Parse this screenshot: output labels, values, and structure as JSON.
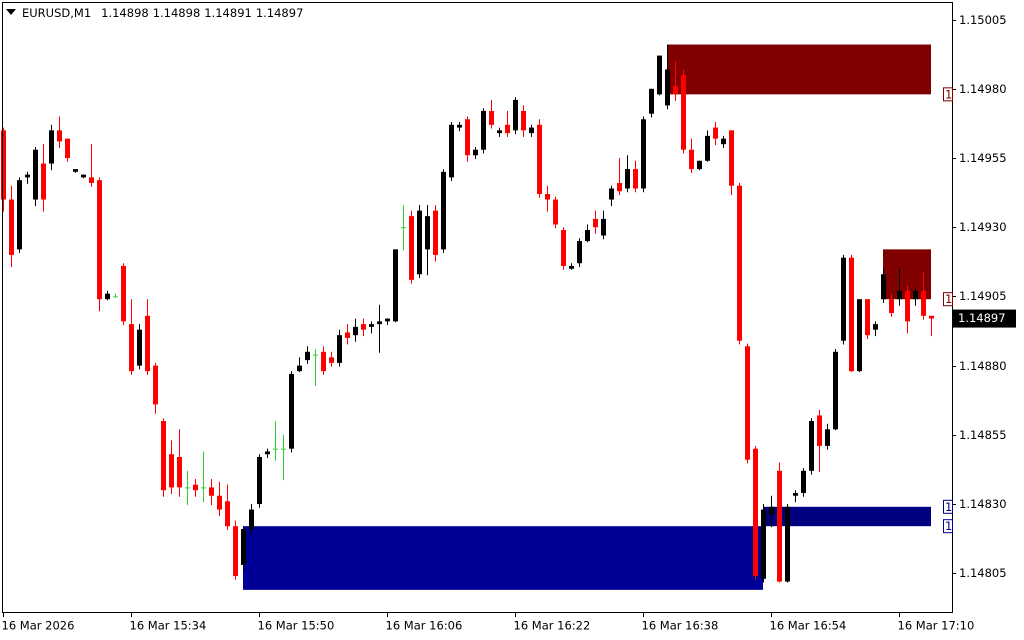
{
  "chart_data": {
    "type": "candlestick",
    "title": "EURUSD,M1",
    "categories": [
      "16 Mar 2026",
      null,
      null,
      null,
      null,
      null,
      null,
      null,
      null,
      null,
      null,
      null,
      null,
      null,
      null,
      null,
      "16 Mar 15:34",
      null,
      null,
      null,
      null,
      null,
      null,
      null,
      null,
      null,
      null,
      null,
      null,
      null,
      null,
      null,
      "16 Mar 15:50",
      null,
      null,
      null,
      null,
      null,
      null,
      null,
      null,
      null,
      null,
      null,
      null,
      null,
      null,
      null,
      "16 Mar 16:06",
      null,
      null,
      null,
      null,
      null,
      null,
      null,
      null,
      null,
      null,
      null,
      null,
      null,
      null,
      null,
      "16 Mar 16:22",
      null,
      null,
      null,
      null,
      null,
      null,
      null,
      null,
      null,
      null,
      null,
      null,
      null,
      null,
      null,
      "16 Mar 16:38",
      null,
      null,
      null,
      null,
      null,
      null,
      null,
      null,
      null,
      null,
      null,
      null,
      null,
      null,
      null,
      "16 Mar 16:54",
      null,
      null,
      null,
      null,
      null,
      null,
      null,
      null,
      null,
      null,
      null,
      null,
      null,
      null,
      null,
      "16 Mar 17:10",
      null,
      null,
      null,
      null
    ],
    "open": [
      1.14965,
      1.1494,
      1.14922,
      1.14948,
      1.1494,
      1.14953,
      1.14953,
      1.14965,
      1.14962,
      1.1495,
      1.14948,
      1.14948,
      1.14947,
      1.14904,
      1.14905,
      1.14916,
      1.14895,
      1.1488,
      1.14898,
      1.1488,
      1.1486,
      1.14848,
      1.14847,
      1.14836,
      1.14837,
      1.14836,
      1.14836,
      1.14833,
      1.14831,
      1.14822,
      1.14808,
      1.14821,
      1.1483,
      1.14848,
      1.1485,
      1.1485,
      1.1485,
      1.14878,
      1.14882,
      1.14884,
      1.14885,
      1.14883,
      1.14881,
      1.14892,
      1.14891,
      1.14895,
      1.14894,
      1.14895,
      1.14896,
      1.14896,
      1.1493,
      1.14934,
      1.14913,
      1.14922,
      1.14936,
      1.14922,
      1.14948,
      1.14966,
      1.14969,
      1.14956,
      1.14958,
      1.14972,
      1.14964,
      1.14967,
      1.14965,
      1.14972,
      1.14964,
      1.14967,
      1.14942,
      1.1494,
      1.14929,
      1.14915,
      1.14917,
      1.14925,
      1.14933,
      1.14927,
      1.1494,
      1.14946,
      1.14944,
      1.14951,
      1.14944,
      1.14971,
      1.14978,
      1.14974,
      1.14981,
      1.14985,
      1.14958,
      1.14951,
      1.14954,
      1.14966,
      1.1496,
      1.14965,
      1.14945,
      1.14887,
      1.1485,
      1.14803,
      1.14826,
      1.14842,
      1.14802,
      1.14833,
      1.14834,
      1.14842,
      1.14862,
      1.14851,
      1.14857,
      1.14889,
      1.14919,
      1.14878,
      1.14904,
      1.14893,
      1.14904,
      1.14904,
      1.14904,
      1.14907,
      1.14904,
      1.14907,
      1.14898
    ],
    "high": [
      1.14966,
      1.14945,
      1.14948,
      1.1495,
      1.14959,
      1.1496,
      1.14967,
      1.1497,
      1.14962,
      1.14951,
      1.14949,
      1.1496,
      1.14948,
      1.14907,
      1.14906,
      1.14917,
      1.14904,
      1.14895,
      1.14904,
      1.14881,
      1.14861,
      1.14853,
      1.14857,
      1.14842,
      1.14839,
      1.14849,
      1.14839,
      1.14838,
      1.14837,
      1.14824,
      1.14822,
      1.1483,
      1.14848,
      1.1485,
      1.1486,
      1.14855,
      1.14878,
      1.14883,
      1.14887,
      1.14886,
      1.14887,
      1.14885,
      1.14893,
      1.14895,
      1.14897,
      1.14897,
      1.14896,
      1.14902,
      1.14897,
      1.14922,
      1.14938,
      1.14936,
      1.14938,
      1.14938,
      1.14938,
      1.14951,
      1.14968,
      1.14968,
      1.1497,
      1.14959,
      1.14973,
      1.14976,
      1.14966,
      1.14972,
      1.14977,
      1.14974,
      1.14967,
      1.14969,
      1.14945,
      1.14941,
      1.1493,
      1.14917,
      1.14926,
      1.14931,
      1.14936,
      1.14936,
      1.14945,
      1.14955,
      1.14956,
      1.14954,
      1.1497,
      1.1498,
      1.14992,
      1.14996,
      1.1499,
      1.14987,
      1.14962,
      1.14954,
      1.14965,
      1.14968,
      1.14963,
      1.14965,
      1.14946,
      1.14888,
      1.14851,
      1.1483,
      1.14833,
      1.14845,
      1.1483,
      1.14835,
      1.14843,
      1.14861,
      1.14864,
      1.14859,
      1.14886,
      1.1492,
      1.1492,
      1.14904,
      1.14904,
      1.14896,
      1.14915,
      1.14906,
      1.14915,
      1.14909,
      1.14908,
      1.14914,
      1.14898
    ],
    "low": [
      1.14936,
      1.14916,
      1.14921,
      1.14946,
      1.14938,
      1.14936,
      1.14951,
      1.14959,
      1.14954,
      1.1495,
      1.14948,
      1.14945,
      1.149,
      1.14904,
      1.14905,
      1.14895,
      1.14877,
      1.14879,
      1.14877,
      1.14863,
      1.14833,
      1.14834,
      1.14833,
      1.1483,
      1.14833,
      1.14831,
      1.1483,
      1.14826,
      1.14821,
      1.14803,
      1.14806,
      1.14819,
      1.14829,
      1.14847,
      1.14846,
      1.14839,
      1.14849,
      1.14878,
      1.14881,
      1.14873,
      1.14877,
      1.1488,
      1.1488,
      1.14888,
      1.14889,
      1.14891,
      1.14892,
      1.14885,
      1.14895,
      1.14896,
      1.14922,
      1.1491,
      1.14912,
      1.14913,
      1.14918,
      1.14921,
      1.14947,
      1.14965,
      1.14954,
      1.14955,
      1.14957,
      1.14966,
      1.14963,
      1.14963,
      1.14964,
      1.14963,
      1.14963,
      1.14941,
      1.14936,
      1.1493,
      1.14915,
      1.14915,
      1.14916,
      1.14925,
      1.14928,
      1.14926,
      1.14938,
      1.14942,
      1.14943,
      1.14943,
      1.14943,
      1.1497,
      1.14978,
      1.14973,
      1.14976,
      1.14957,
      1.1495,
      1.14951,
      1.14954,
      1.1496,
      1.14959,
      1.14942,
      1.14888,
      1.14845,
      1.14803,
      1.14802,
      1.14822,
      1.14802,
      1.14802,
      1.14831,
      1.14833,
      1.14841,
      1.14842,
      1.1485,
      1.14857,
      1.14888,
      1.14878,
      1.14878,
      1.1489,
      1.14891,
      1.14903,
      1.14898,
      1.14902,
      1.14892,
      1.14902,
      1.14897,
      1.14891
    ],
    "close": [
      1.1494,
      1.1492,
      1.14947,
      1.14949,
      1.14958,
      1.1494,
      1.14965,
      1.14961,
      1.14955,
      1.14951,
      1.14949,
      1.14946,
      1.14904,
      1.14906,
      1.14905,
      1.14896,
      1.14878,
      1.14893,
      1.14878,
      1.14866,
      1.14835,
      1.14836,
      1.14836,
      1.14836,
      1.14835,
      1.14836,
      1.14833,
      1.14828,
      1.14822,
      1.14804,
      1.14821,
      1.14828,
      1.14847,
      1.14849,
      1.1485,
      1.1485,
      1.14877,
      1.1488,
      1.14885,
      1.14884,
      1.14878,
      1.14881,
      1.14891,
      1.1489,
      1.14894,
      1.14893,
      1.14895,
      1.14896,
      1.14897,
      1.14922,
      1.1493,
      1.14911,
      1.14936,
      1.14934,
      1.1492,
      1.1495,
      1.14967,
      1.14967,
      1.14956,
      1.14958,
      1.14972,
      1.14967,
      1.14965,
      1.14964,
      1.14976,
      1.14965,
      1.14966,
      1.14942,
      1.1494,
      1.14931,
      1.14916,
      1.14916,
      1.14925,
      1.14929,
      1.1493,
      1.14933,
      1.14944,
      1.14943,
      1.14951,
      1.14944,
      1.14969,
      1.1498,
      1.14992,
      1.14987,
      1.14978,
      1.14958,
      1.14951,
      1.14954,
      1.14963,
      1.14962,
      1.14962,
      1.14945,
      1.14889,
      1.14846,
      1.14804,
      1.14828,
      1.14829,
      1.14802,
      1.14829,
      1.14834,
      1.14842,
      1.1486,
      1.14851,
      1.14857,
      1.14885,
      1.14919,
      1.14878,
      1.14904,
      1.14891,
      1.14895,
      1.14913,
      1.14899,
      1.14907,
      1.14896,
      1.14907,
      1.14898,
      1.14897
    ],
    "up_color": "#000000",
    "down_color": "#ff0000",
    "doji_color": "#33cc33",
    "ylim": [
      1.14791,
      1.15011
    ],
    "yticks": [
      1.15005,
      {
        "value": 1.1498,
        "label": "1.14980"
      },
      1.14955,
      {
        "value": 1.1493,
        "label": "1.14930"
      },
      1.14905,
      {
        "value": 1.1488,
        "label": "1.14880"
      },
      1.14855,
      {
        "value": 1.1483,
        "label": "1.14830"
      },
      1.14805
    ],
    "zones": [
      {
        "high": 1.14996,
        "low": 1.14978,
        "start": 83,
        "end": 116,
        "color": "#800000",
        "label": "1",
        "label_at": "low"
      },
      {
        "high": 1.14922,
        "low": 1.14904,
        "start": 110,
        "end": 116,
        "color": "#800000",
        "label": "1",
        "label_at": "low"
      },
      {
        "high": 1.14829,
        "low": 1.14822,
        "start": 95,
        "end": 116,
        "color": "#000080",
        "label": "1",
        "label_at": "high"
      },
      {
        "high": 1.14822,
        "low": 1.14799,
        "start": 30,
        "end": 95,
        "color": "#000096",
        "label": "1",
        "label_at": "high"
      }
    ]
  }
}
